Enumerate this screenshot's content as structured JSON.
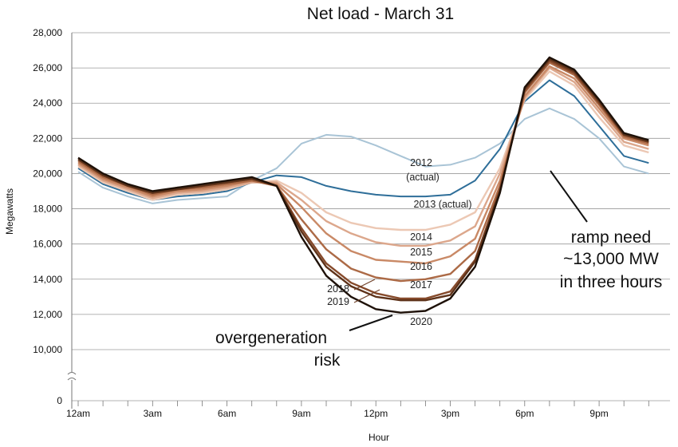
{
  "chart_data": {
    "type": "line",
    "title": "Net load - March 31",
    "xlabel": "Hour",
    "ylabel": "Megawatts",
    "ylim": [
      10000,
      28000
    ],
    "y_ticks": [
      "28,000",
      "26,000",
      "24,000",
      "22,000",
      "20,000",
      "18,000",
      "16,000",
      "14,000",
      "12,000",
      "10,000"
    ],
    "y_zero_tick": "0",
    "x": [
      0,
      1,
      2,
      3,
      4,
      5,
      6,
      7,
      8,
      9,
      10,
      11,
      12,
      13,
      14,
      15,
      16,
      17,
      18,
      19,
      20,
      21,
      22,
      23
    ],
    "x_ticks": [
      {
        "hour": 0,
        "label": "12am"
      },
      {
        "hour": 3,
        "label": "3am"
      },
      {
        "hour": 6,
        "label": "6am"
      },
      {
        "hour": 9,
        "label": "9am"
      },
      {
        "hour": 12,
        "label": "12pm"
      },
      {
        "hour": 15,
        "label": "3pm"
      },
      {
        "hour": 18,
        "label": "6pm"
      },
      {
        "hour": 21,
        "label": "9pm"
      }
    ],
    "series": [
      {
        "name": "2012 (actual)",
        "color": "#a9c4d6",
        "values": [
          20100,
          19200,
          18700,
          18300,
          18500,
          18600,
          18700,
          19600,
          20300,
          21700,
          22200,
          22100,
          21600,
          21000,
          20400,
          20500,
          20900,
          21700,
          23100,
          23700,
          23100,
          22000,
          20400,
          20000
        ]
      },
      {
        "name": "2013 (actual)",
        "color": "#2e6e99",
        "values": [
          20300,
          19400,
          18900,
          18500,
          18700,
          18800,
          19000,
          19500,
          19900,
          19800,
          19300,
          19000,
          18800,
          18700,
          18700,
          18800,
          19600,
          21400,
          24100,
          25300,
          24400,
          22700,
          21000,
          20600
        ]
      },
      {
        "name": "2014",
        "color": "#ecc8b4",
        "values": [
          20400,
          19500,
          19000,
          18500,
          18800,
          18900,
          19100,
          19500,
          19600,
          18900,
          17800,
          17200,
          16900,
          16800,
          16800,
          17100,
          17800,
          20300,
          24200,
          25800,
          25000,
          23200,
          21600,
          21200
        ]
      },
      {
        "name": "2015",
        "color": "#dca78c",
        "values": [
          20500,
          19600,
          19100,
          18600,
          18900,
          19000,
          19200,
          19500,
          19500,
          18500,
          17300,
          16600,
          16100,
          15900,
          15900,
          16200,
          17000,
          20000,
          24300,
          26000,
          25200,
          23500,
          21800,
          21400
        ]
      },
      {
        "name": "2016",
        "color": "#c98966",
        "values": [
          20600,
          19700,
          19200,
          18700,
          19000,
          19100,
          19300,
          19600,
          19400,
          18100,
          16600,
          15600,
          15100,
          15000,
          14900,
          15300,
          16300,
          19600,
          24400,
          26100,
          25400,
          23700,
          22000,
          21600
        ]
      },
      {
        "name": "2017",
        "color": "#ac6a46",
        "values": [
          20700,
          19800,
          19300,
          18800,
          19100,
          19200,
          19400,
          19600,
          19300,
          17400,
          15700,
          14600,
          14100,
          13900,
          14000,
          14300,
          15600,
          19300,
          24600,
          26300,
          25600,
          23900,
          22100,
          21700
        ]
      },
      {
        "name": "2018",
        "color": "#864a2b",
        "values": [
          20800,
          19900,
          19400,
          18900,
          19200,
          19300,
          19500,
          19700,
          19300,
          16900,
          14900,
          13800,
          13200,
          12900,
          12900,
          13300,
          15100,
          19100,
          24700,
          26400,
          25700,
          24000,
          22200,
          21800
        ]
      },
      {
        "name": "2019",
        "color": "#5e3219",
        "values": [
          20800,
          19900,
          19300,
          18900,
          19100,
          19300,
          19500,
          19700,
          19300,
          16700,
          14700,
          13600,
          13000,
          12800,
          12800,
          13100,
          15000,
          19000,
          24800,
          26500,
          25800,
          24100,
          22200,
          21800
        ]
      },
      {
        "name": "2020",
        "color": "#1e1108",
        "values": [
          20900,
          20000,
          19400,
          19000,
          19200,
          19400,
          19600,
          19800,
          19300,
          16400,
          14200,
          13000,
          12300,
          12100,
          12200,
          12900,
          14700,
          18900,
          24900,
          26600,
          25900,
          24200,
          22300,
          21900
        ]
      }
    ],
    "series_labels": [
      {
        "series": "2012 (actual)",
        "lines": [
          "2012",
          "(actual)"
        ]
      },
      {
        "series": "2013 (actual)",
        "lines": [
          "2013 (actual)"
        ]
      },
      {
        "series": "2014",
        "lines": [
          "2014"
        ]
      },
      {
        "series": "2015",
        "lines": [
          "2015"
        ]
      },
      {
        "series": "2016",
        "lines": [
          "2016"
        ]
      },
      {
        "series": "2017",
        "lines": [
          "2017"
        ]
      },
      {
        "series": "2018",
        "lines": [
          "2018"
        ]
      },
      {
        "series": "2019",
        "lines": [
          "2019"
        ]
      },
      {
        "series": "2020",
        "lines": [
          "2020"
        ]
      }
    ],
    "annotations": [
      {
        "name": "overgeneration-annotation",
        "lines": [
          "overgeneration",
          "risk"
        ]
      },
      {
        "name": "ramp-need-annotation",
        "lines": [
          "ramp need",
          "~13,000 MW",
          "in three hours"
        ]
      }
    ],
    "grid": true,
    "legend": "none"
  }
}
